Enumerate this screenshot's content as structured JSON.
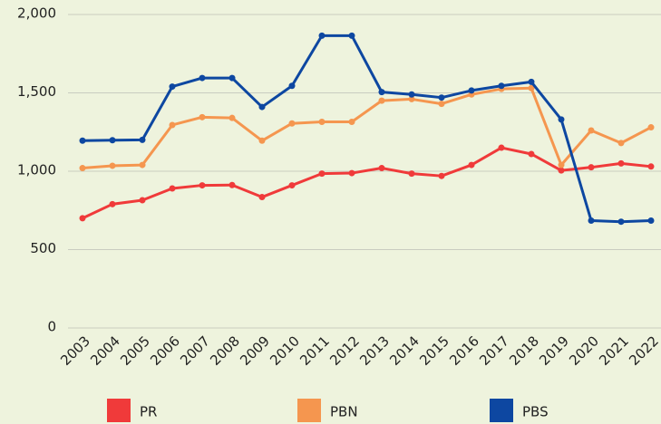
{
  "chart_data": {
    "type": "line",
    "x": [
      2003,
      2004,
      2005,
      2006,
      2007,
      2008,
      2009,
      2010,
      2011,
      2012,
      2013,
      2014,
      2015,
      2016,
      2017,
      2018,
      2019,
      2020,
      2021,
      2022
    ],
    "series": [
      {
        "name": "PR",
        "color": "#f03a3a",
        "values": [
          700,
          790,
          815,
          890,
          910,
          912,
          835,
          910,
          985,
          988,
          1020,
          985,
          970,
          1040,
          1150,
          1110,
          1005,
          1025,
          1050,
          1030
        ]
      },
      {
        "name": "PBN",
        "color": "#f5964f",
        "values": [
          1020,
          1035,
          1040,
          1295,
          1345,
          1340,
          1195,
          1305,
          1315,
          1315,
          1450,
          1460,
          1430,
          1490,
          1525,
          1530,
          1040,
          1260,
          1180,
          1280
        ]
      },
      {
        "name": "PBS",
        "color": "#0d47a1",
        "values": [
          1195,
          1198,
          1200,
          1540,
          1595,
          1595,
          1410,
          1545,
          1865,
          1865,
          1505,
          1490,
          1470,
          1515,
          1545,
          1570,
          1330,
          685,
          678,
          685
        ]
      }
    ],
    "ylim": [
      0,
      2000
    ],
    "yticks": [
      0,
      500,
      {
        "value": 1000,
        "label": "1,000"
      },
      {
        "value": 1500,
        "label": "1,500"
      },
      {
        "value": 2000,
        "label": "2,000"
      }
    ],
    "grid": true,
    "legend": "bottom"
  }
}
